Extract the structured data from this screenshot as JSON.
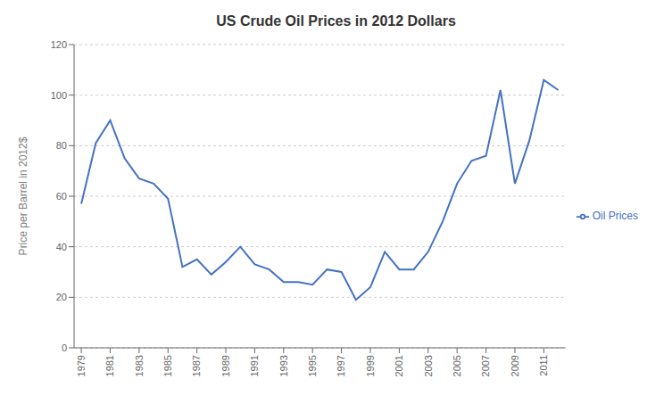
{
  "chart_data": {
    "type": "line",
    "title": "US Crude Oil Prices in 2012 Dollars",
    "y_label": "Price per Barrel in 2012$",
    "x": [
      1979,
      1980,
      1981,
      1982,
      1983,
      1984,
      1985,
      1986,
      1987,
      1988,
      1989,
      1990,
      1991,
      1992,
      1993,
      1994,
      1995,
      1996,
      1997,
      1998,
      1999,
      2000,
      2001,
      2002,
      2003,
      2004,
      2005,
      2006,
      2007,
      2008,
      2009,
      2010,
      2011,
      2012
    ],
    "series": [
      {
        "name": "Oil Prices",
        "color": "#4472C4",
        "values": [
          57,
          81,
          90,
          75,
          67,
          65,
          59,
          32,
          35,
          29,
          34,
          40,
          33,
          31,
          26,
          26,
          25,
          31,
          30,
          19,
          24,
          38,
          31,
          31,
          38,
          50,
          65,
          74,
          76,
          102,
          65,
          82,
          106,
          102
        ]
      }
    ],
    "xlim": [
      1978.5,
      2012.5
    ],
    "xticks": [
      1979,
      1981,
      1983,
      1985,
      1987,
      1989,
      1991,
      1993,
      1995,
      1997,
      1999,
      2001,
      2003,
      2005,
      2007,
      2009,
      2011
    ],
    "ylim": [
      0,
      120
    ],
    "yticks": [
      0,
      20,
      40,
      60,
      80,
      100,
      120
    ],
    "grid": "y",
    "legend": "right"
  }
}
